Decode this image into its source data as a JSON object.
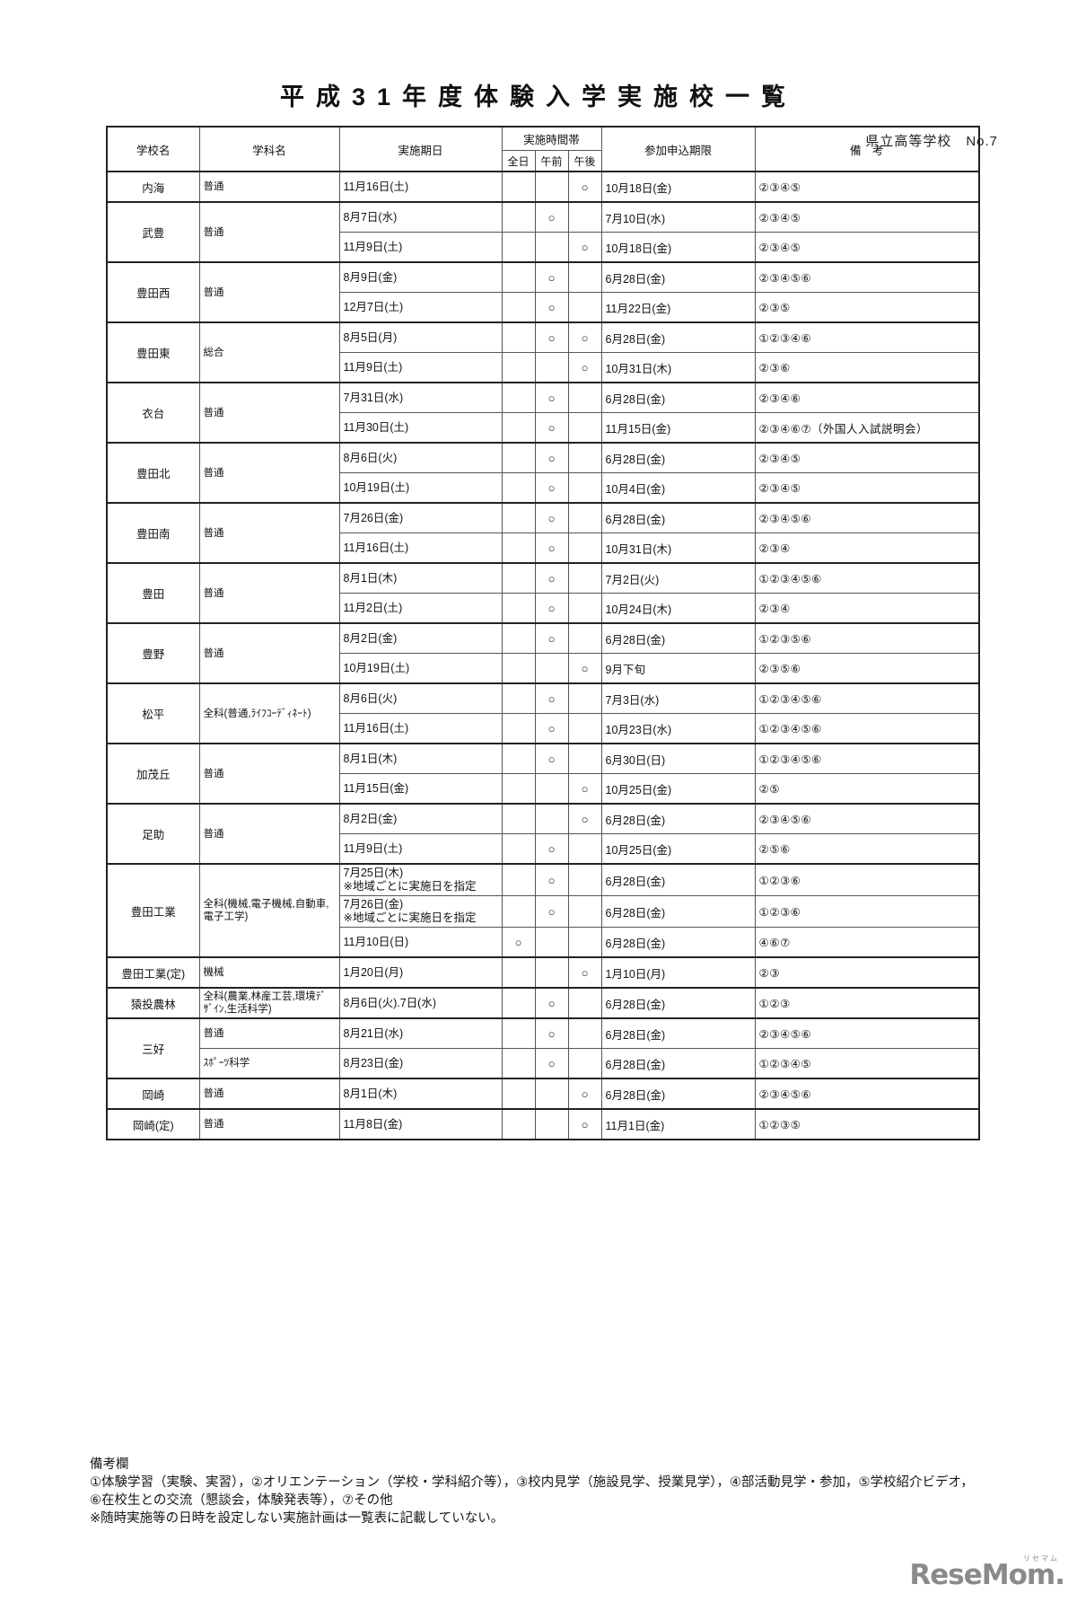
{
  "page": {
    "corner_label": "県立高等学校　No.7",
    "title": "平成31年度体験入学実施校一覧"
  },
  "table": {
    "headers": {
      "school": "学校名",
      "department": "学科名",
      "date": "実施期日",
      "time_band": "実施時間帯",
      "all_day": "全日",
      "morning": "午前",
      "afternoon": "午後",
      "deadline": "参加申込期限",
      "notes": "備　考"
    },
    "schools": [
      {
        "name": "内海",
        "groups": [
          {
            "dept": "普通",
            "rows": [
              {
                "date": "11月16日(土)",
                "all_day": "",
                "morning": "",
                "afternoon": "○",
                "deadline": "10月18日(金)",
                "notes": "②③④⑤"
              }
            ]
          }
        ]
      },
      {
        "name": "武豊",
        "groups": [
          {
            "dept": "普通",
            "rows": [
              {
                "date": "8月7日(水)",
                "all_day": "",
                "morning": "○",
                "afternoon": "",
                "deadline": "7月10日(水)",
                "notes": "②③④⑤"
              },
              {
                "date": "11月9日(土)",
                "all_day": "",
                "morning": "",
                "afternoon": "○",
                "deadline": "10月18日(金)",
                "notes": "②③④⑤"
              }
            ]
          }
        ]
      },
      {
        "name": "豊田西",
        "groups": [
          {
            "dept": "普通",
            "rows": [
              {
                "date": "8月9日(金)",
                "all_day": "",
                "morning": "○",
                "afternoon": "",
                "deadline": "6月28日(金)",
                "notes": "②③④⑤⑥"
              },
              {
                "date": "12月7日(土)",
                "all_day": "",
                "morning": "○",
                "afternoon": "",
                "deadline": "11月22日(金)",
                "notes": "②③⑤"
              }
            ]
          }
        ]
      },
      {
        "name": "豊田東",
        "groups": [
          {
            "dept": "総合",
            "rows": [
              {
                "date": "8月5日(月)",
                "all_day": "",
                "morning": "○",
                "afternoon": "○",
                "deadline": "6月28日(金)",
                "notes": "①②③④⑥"
              },
              {
                "date": "11月9日(土)",
                "all_day": "",
                "morning": "",
                "afternoon": "○",
                "deadline": "10月31日(木)",
                "notes": "②③⑥"
              }
            ]
          }
        ]
      },
      {
        "name": "衣台",
        "groups": [
          {
            "dept": "普通",
            "rows": [
              {
                "date": "7月31日(水)",
                "all_day": "",
                "morning": "○",
                "afternoon": "",
                "deadline": "6月28日(金)",
                "notes": "②③④⑥"
              },
              {
                "date": "11月30日(土)",
                "all_day": "",
                "morning": "○",
                "afternoon": "",
                "deadline": "11月15日(金)",
                "notes": "②③④⑥⑦（外国人入試説明会）"
              }
            ]
          }
        ]
      },
      {
        "name": "豊田北",
        "groups": [
          {
            "dept": "普通",
            "rows": [
              {
                "date": "8月6日(火)",
                "all_day": "",
                "morning": "○",
                "afternoon": "",
                "deadline": "6月28日(金)",
                "notes": "②③④⑤"
              },
              {
                "date": "10月19日(土)",
                "all_day": "",
                "morning": "○",
                "afternoon": "",
                "deadline": "10月4日(金)",
                "notes": "②③④⑤"
              }
            ]
          }
        ]
      },
      {
        "name": "豊田南",
        "groups": [
          {
            "dept": "普通",
            "rows": [
              {
                "date": "7月26日(金)",
                "all_day": "",
                "morning": "○",
                "afternoon": "",
                "deadline": "6月28日(金)",
                "notes": "②③④⑤⑥"
              },
              {
                "date": "11月16日(土)",
                "all_day": "",
                "morning": "○",
                "afternoon": "",
                "deadline": "10月31日(木)",
                "notes": "②③④"
              }
            ]
          }
        ]
      },
      {
        "name": "豊田",
        "groups": [
          {
            "dept": "普通",
            "rows": [
              {
                "date": "8月1日(木)",
                "all_day": "",
                "morning": "○",
                "afternoon": "",
                "deadline": "7月2日(火)",
                "notes": "①②③④⑤⑥"
              },
              {
                "date": "11月2日(土)",
                "all_day": "",
                "morning": "○",
                "afternoon": "",
                "deadline": "10月24日(木)",
                "notes": "②③④"
              }
            ]
          }
        ]
      },
      {
        "name": "豊野",
        "groups": [
          {
            "dept": "普通",
            "rows": [
              {
                "date": "8月2日(金)",
                "all_day": "",
                "morning": "○",
                "afternoon": "",
                "deadline": "6月28日(金)",
                "notes": "①②③⑤⑥"
              },
              {
                "date": "10月19日(土)",
                "all_day": "",
                "morning": "",
                "afternoon": "○",
                "deadline": "9月下旬",
                "notes": "②③⑤⑥"
              }
            ]
          }
        ]
      },
      {
        "name": "松平",
        "groups": [
          {
            "dept": "全科(普通,ﾗｲﾌｺｰﾃﾞｨﾈｰﾄ)",
            "rows": [
              {
                "date": "8月6日(火)",
                "all_day": "",
                "morning": "○",
                "afternoon": "",
                "deadline": "7月3日(水)",
                "notes": "①②③④⑤⑥"
              },
              {
                "date": "11月16日(土)",
                "all_day": "",
                "morning": "○",
                "afternoon": "",
                "deadline": "10月23日(水)",
                "notes": "①②③④⑤⑥"
              }
            ]
          }
        ]
      },
      {
        "name": "加茂丘",
        "groups": [
          {
            "dept": "普通",
            "rows": [
              {
                "date": "8月1日(木)",
                "all_day": "",
                "morning": "○",
                "afternoon": "",
                "deadline": "6月30日(日)",
                "notes": "①②③④⑤⑥"
              },
              {
                "date": "11月15日(金)",
                "all_day": "",
                "morning": "",
                "afternoon": "○",
                "deadline": "10月25日(金)",
                "notes": "②⑤"
              }
            ]
          }
        ]
      },
      {
        "name": "足助",
        "groups": [
          {
            "dept": "普通",
            "rows": [
              {
                "date": "8月2日(金)",
                "all_day": "",
                "morning": "",
                "afternoon": "○",
                "deadline": "6月28日(金)",
                "notes": "②③④⑤⑥"
              },
              {
                "date": "11月9日(土)",
                "all_day": "",
                "morning": "○",
                "afternoon": "",
                "deadline": "10月25日(金)",
                "notes": "②⑤⑥"
              }
            ]
          }
        ]
      },
      {
        "name": "豊田工業",
        "groups": [
          {
            "dept": "全科(機械,電子機械,自動車,電子工学)",
            "rows": [
              {
                "date": "7月25日(木)\n※地域ごとに実施日を指定",
                "all_day": "",
                "morning": "○",
                "afternoon": "",
                "deadline": "6月28日(金)",
                "notes": "①②③⑥"
              },
              {
                "date": "7月26日(金)\n※地域ごとに実施日を指定",
                "all_day": "",
                "morning": "○",
                "afternoon": "",
                "deadline": "6月28日(金)",
                "notes": "①②③⑥"
              },
              {
                "date": "11月10日(日)",
                "all_day": "○",
                "morning": "",
                "afternoon": "",
                "deadline": "6月28日(金)",
                "notes": "④⑥⑦"
              }
            ]
          }
        ]
      },
      {
        "name": "豊田工業(定)",
        "groups": [
          {
            "dept": "機械",
            "rows": [
              {
                "date": "1月20日(月)",
                "all_day": "",
                "morning": "",
                "afternoon": "○",
                "deadline": "1月10日(月)",
                "notes": "②③"
              }
            ]
          }
        ]
      },
      {
        "name": "猿投農林",
        "groups": [
          {
            "dept": "全科(農業,林産工芸,環境ﾃﾞｻﾞｲﾝ,生活科学)",
            "rows": [
              {
                "date": "8月6日(火).7日(水)",
                "all_day": "",
                "morning": "○",
                "afternoon": "",
                "deadline": "6月28日(金)",
                "notes": "①②③"
              }
            ]
          }
        ]
      },
      {
        "name": "三好",
        "groups": [
          {
            "dept": "普通",
            "rows": [
              {
                "date": "8月21日(水)",
                "all_day": "",
                "morning": "○",
                "afternoon": "",
                "deadline": "6月28日(金)",
                "notes": "②③④⑤⑥"
              }
            ]
          },
          {
            "dept": "ｽﾎﾟｰﾂ科学",
            "rows": [
              {
                "date": "8月23日(金)",
                "all_day": "",
                "morning": "○",
                "afternoon": "",
                "deadline": "6月28日(金)",
                "notes": "①②③④⑤"
              }
            ]
          }
        ]
      },
      {
        "name": "岡崎",
        "groups": [
          {
            "dept": "普通",
            "rows": [
              {
                "date": "8月1日(木)",
                "all_day": "",
                "morning": "",
                "afternoon": "○",
                "deadline": "6月28日(金)",
                "notes": "②③④⑤⑥"
              }
            ]
          }
        ]
      },
      {
        "name": "岡崎(定)",
        "groups": [
          {
            "dept": "普通",
            "rows": [
              {
                "date": "11月8日(金)",
                "all_day": "",
                "morning": "",
                "afternoon": "○",
                "deadline": "11月1日(金)",
                "notes": "①②③⑤"
              }
            ]
          }
        ]
      }
    ]
  },
  "footnotes": {
    "heading": "備考欄",
    "lines": [
      "①体験学習（実験、実習），②オリエンテーション（学校・学科紹介等），③校内見学（施設見学、授業見学），④部活動見学・参加，⑤学校紹介ビデオ，",
      "⑥在校生との交流（懇談会，体験発表等），⑦その他",
      "※随時実施等の日時を設定しない実施計画は一覧表に記載していない。"
    ]
  },
  "logo": {
    "text": "ReseMom.",
    "mini_label": "リセマム",
    "color": "#8a8a8a"
  }
}
